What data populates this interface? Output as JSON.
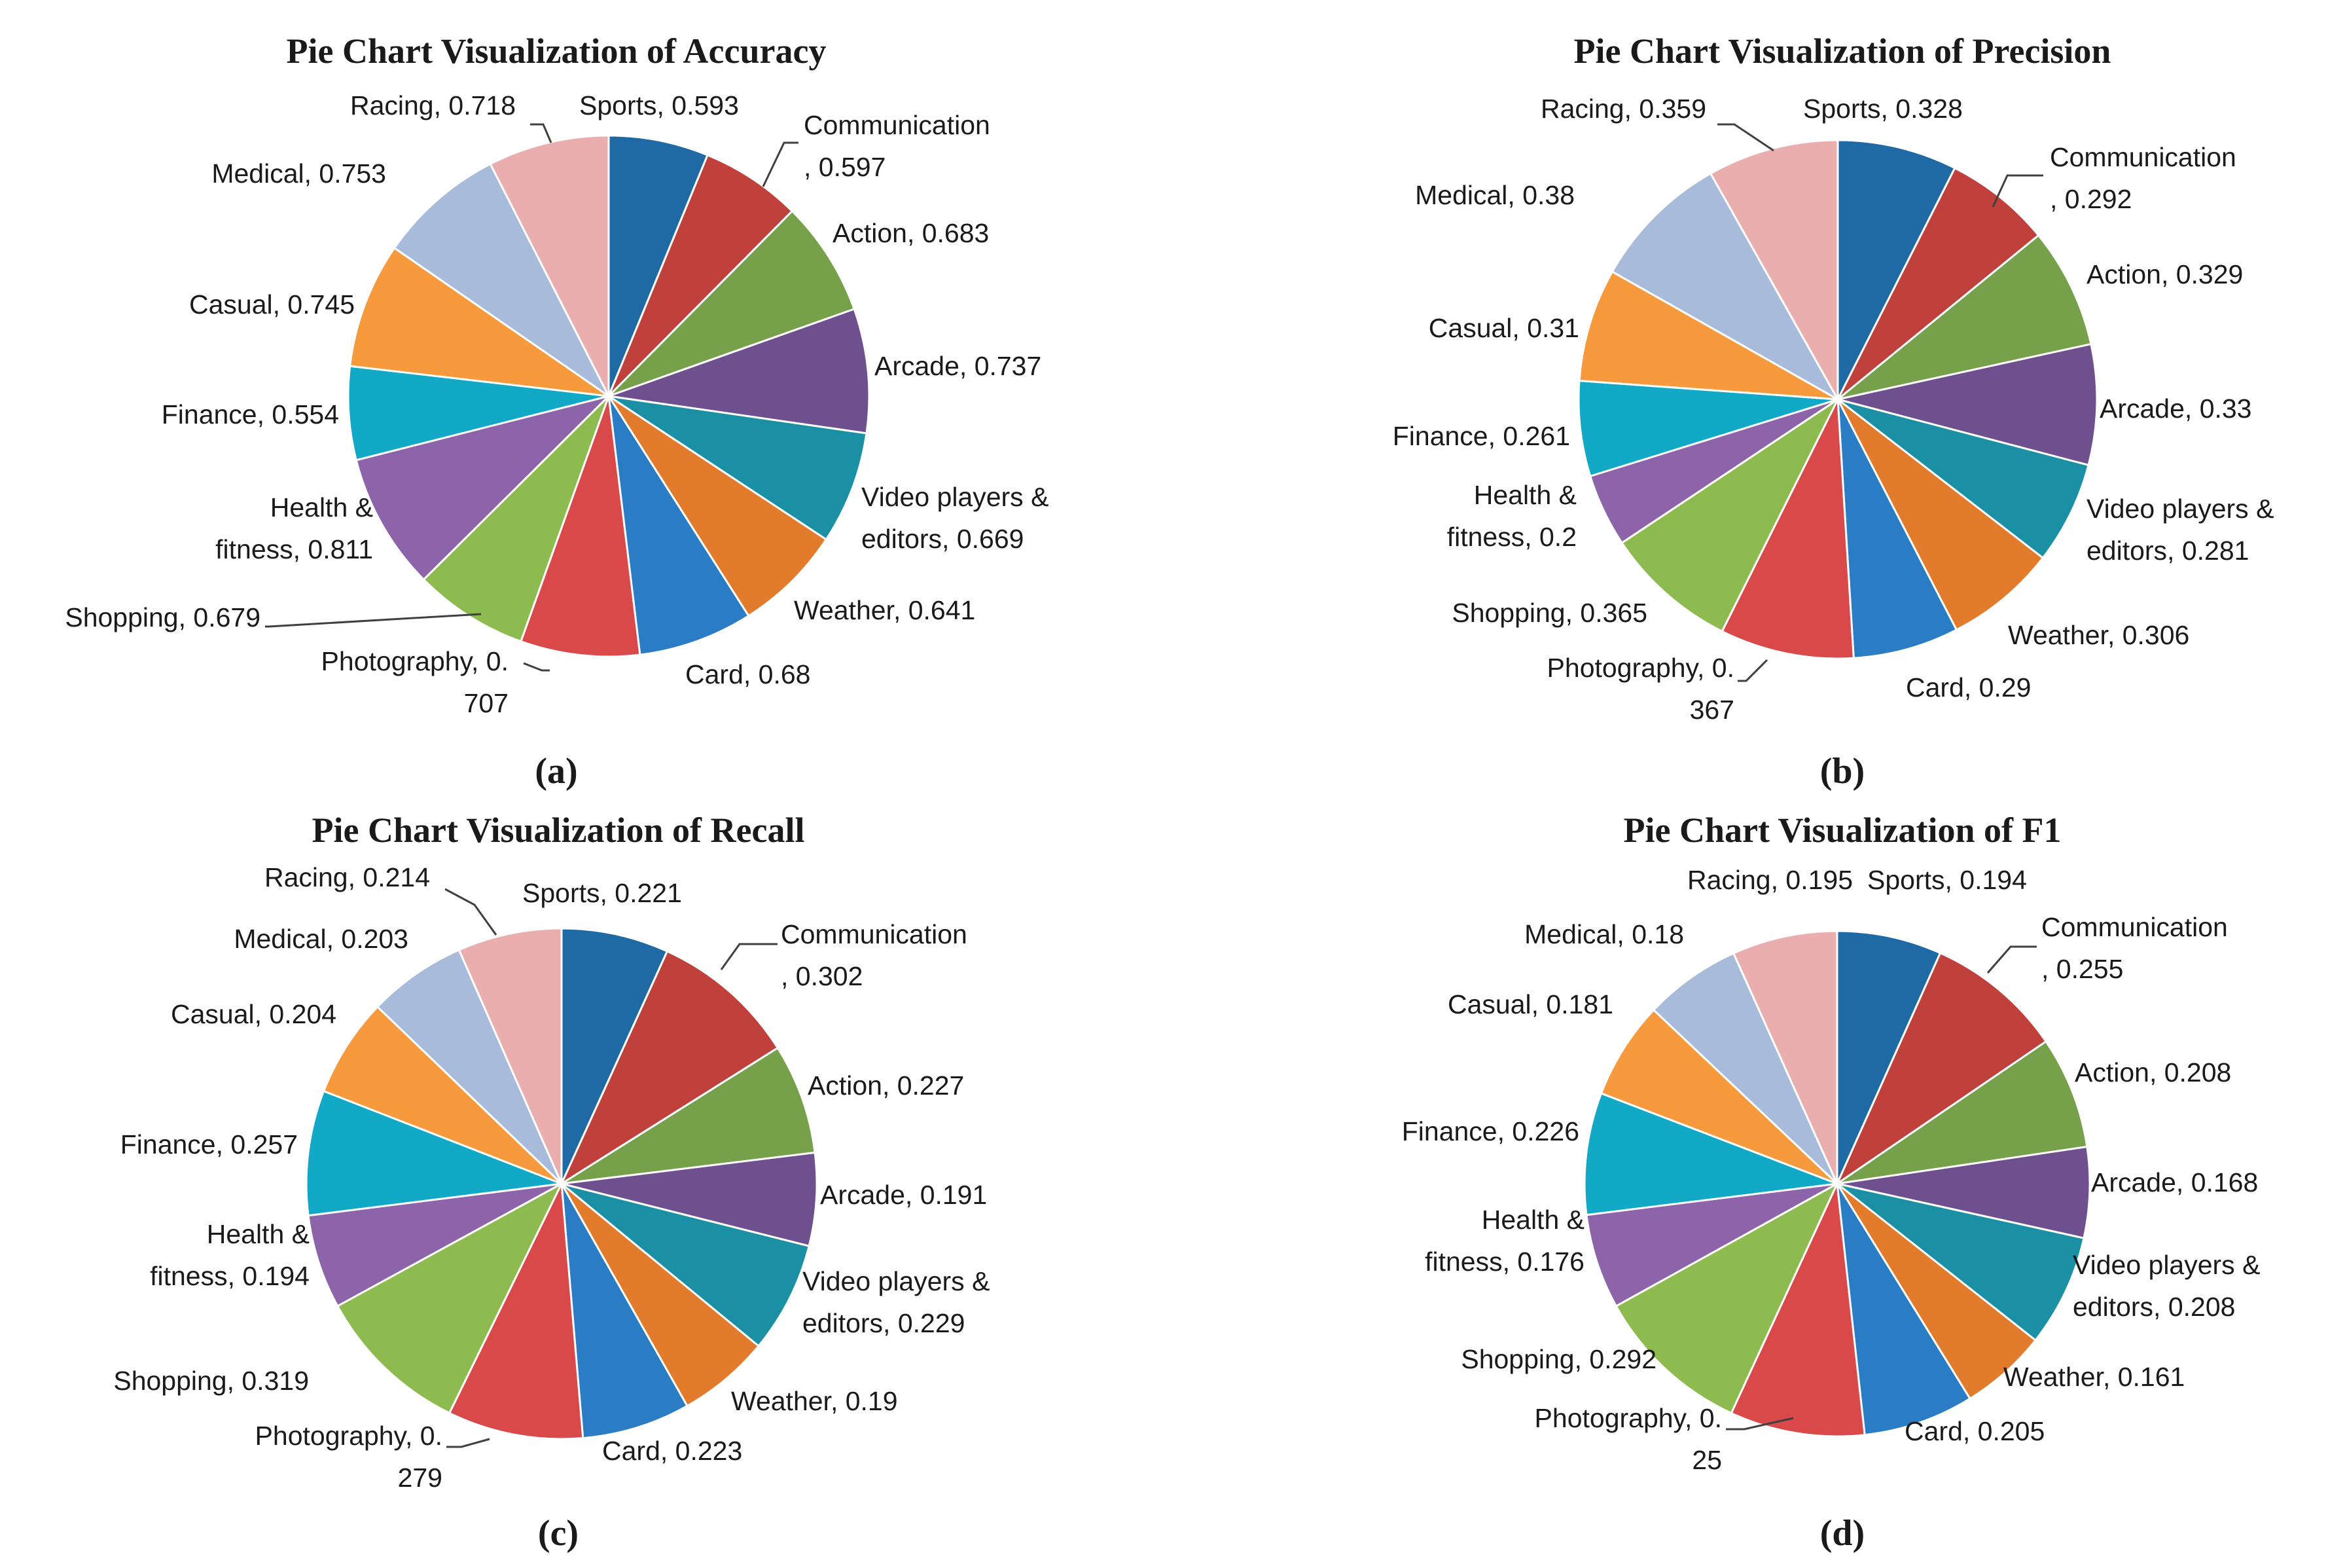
{
  "colors": [
    "#1f6aa5",
    "#c0403c",
    "#77a04a",
    "#6f508f",
    "#1b8fa3",
    "#e37b2d",
    "#2a7cc4",
    "#d9494a",
    "#8dbb50",
    "#8d63aa",
    "#11a9c6",
    "#f79a3d",
    "#a8bbdb",
    "#ebaeae"
  ],
  "chart_data": [
    {
      "type": "pie",
      "panel": "(a)",
      "title": "Pie Chart Visualization of Accuracy",
      "start": "12 o'clock, clockwise",
      "categories": [
        "Sports",
        "Communication",
        "Action",
        "Arcade",
        "Video players & editors",
        "Weather",
        "Card",
        "Photography",
        "Shopping",
        "Health & fitness",
        "Finance",
        "Casual",
        "Medical",
        "Racing"
      ],
      "values": [
        0.593,
        0.597,
        0.683,
        0.737,
        0.669,
        0.641,
        0.68,
        0.707,
        0.679,
        0.811,
        0.554,
        0.745,
        0.753,
        0.718
      ],
      "labels": [
        [
          "Sports, 0.593"
        ],
        [
          "Communication",
          ", 0.597"
        ],
        [
          "Action, 0.683"
        ],
        [
          "Arcade, 0.737"
        ],
        [
          "Video players &",
          "editors, 0.669"
        ],
        [
          "Weather, 0.641"
        ],
        [
          "Card, 0.68"
        ],
        [
          "Photography, 0.",
          "707"
        ],
        [
          "Shopping, 0.679"
        ],
        [
          "Health &",
          "fitness, 0.811"
        ],
        [
          "Finance, 0.554"
        ],
        [
          "Casual, 0.745"
        ],
        [
          "Medical, 0.753"
        ],
        [
          "Racing, 0.718"
        ]
      ]
    },
    {
      "type": "pie",
      "panel": "(b)",
      "title": "Pie Chart Visualization of Precision",
      "start": "12 o'clock, clockwise",
      "categories": [
        "Sports",
        "Communication",
        "Action",
        "Arcade",
        "Video players & editors",
        "Weather",
        "Card",
        "Photography",
        "Shopping",
        "Health & fitness",
        "Finance",
        "Casual",
        "Medical",
        "Racing"
      ],
      "values": [
        0.328,
        0.292,
        0.329,
        0.33,
        0.281,
        0.306,
        0.29,
        0.367,
        0.365,
        0.2,
        0.261,
        0.31,
        0.38,
        0.359
      ],
      "labels": [
        [
          "Sports, 0.328"
        ],
        [
          "Communication",
          ", 0.292"
        ],
        [
          "Action, 0.329"
        ],
        [
          "Arcade, 0.33"
        ],
        [
          "Video players &",
          "editors, 0.281"
        ],
        [
          "Weather, 0.306"
        ],
        [
          "Card, 0.29"
        ],
        [
          "Photography, 0.",
          "367"
        ],
        [
          "Shopping, 0.365"
        ],
        [
          "Health &",
          "fitness, 0.2"
        ],
        [
          "Finance, 0.261"
        ],
        [
          "Casual, 0.31"
        ],
        [
          "Medical, 0.38"
        ],
        [
          "Racing, 0.359"
        ]
      ]
    },
    {
      "type": "pie",
      "panel": "(c)",
      "title": "Pie Chart Visualization of Recall",
      "start": "12 o'clock, clockwise",
      "categories": [
        "Sports",
        "Communication",
        "Action",
        "Arcade",
        "Video players & editors",
        "Weather",
        "Card",
        "Photography",
        "Shopping",
        "Health & fitness",
        "Finance",
        "Casual",
        "Medical",
        "Racing"
      ],
      "values": [
        0.221,
        0.302,
        0.227,
        0.191,
        0.229,
        0.19,
        0.223,
        0.279,
        0.319,
        0.194,
        0.257,
        0.204,
        0.203,
        0.214
      ],
      "labels": [
        [
          "Sports, 0.221"
        ],
        [
          "Communication",
          ", 0.302"
        ],
        [
          "Action, 0.227"
        ],
        [
          "Arcade, 0.191"
        ],
        [
          "Video players &",
          "editors, 0.229"
        ],
        [
          "Weather, 0.19"
        ],
        [
          "Card, 0.223"
        ],
        [
          "Photography, 0.",
          "279"
        ],
        [
          "Shopping, 0.319"
        ],
        [
          "Health &",
          "fitness, 0.194"
        ],
        [
          "Finance, 0.257"
        ],
        [
          "Casual, 0.204"
        ],
        [
          "Medical, 0.203"
        ],
        [
          "Racing, 0.214"
        ]
      ]
    },
    {
      "type": "pie",
      "panel": "(d)",
      "title": "Pie Chart Visualization of F1",
      "start": "12 o'clock, clockwise",
      "categories": [
        "Sports",
        "Communication",
        "Action",
        "Arcade",
        "Video players & editors",
        "Weather",
        "Card",
        "Photography",
        "Shopping",
        "Health & fitness",
        "Finance",
        "Casual",
        "Medical",
        "Racing"
      ],
      "values": [
        0.194,
        0.255,
        0.208,
        0.168,
        0.208,
        0.161,
        0.205,
        0.25,
        0.292,
        0.176,
        0.226,
        0.181,
        0.18,
        0.195
      ],
      "labels": [
        [
          "Sports, 0.194"
        ],
        [
          "Communication",
          ", 0.255"
        ],
        [
          "Action, 0.208"
        ],
        [
          "Arcade, 0.168"
        ],
        [
          "Video players &",
          "editors, 0.208"
        ],
        [
          "Weather, 0.161"
        ],
        [
          "Card, 0.205"
        ],
        [
          "Photography, 0.",
          "25"
        ],
        [
          "Shopping, 0.292"
        ],
        [
          "Health &",
          "fitness, 0.176"
        ],
        [
          "Finance, 0.226"
        ],
        [
          "Casual, 0.181"
        ],
        [
          "Medical, 0.18"
        ],
        [
          "Racing, 0.195"
        ]
      ]
    }
  ]
}
